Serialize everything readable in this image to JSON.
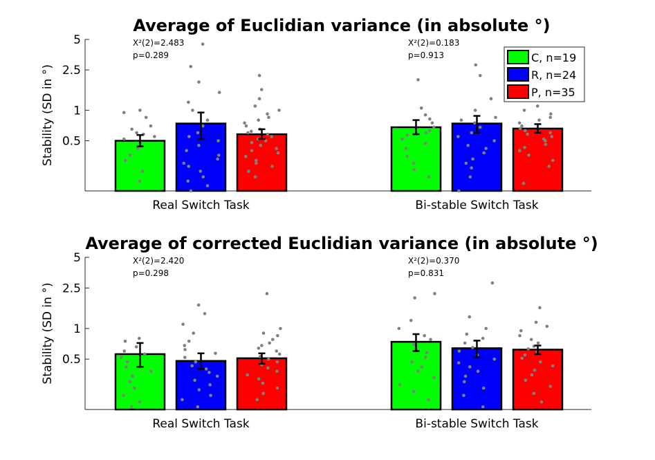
{
  "colors": {
    "C": "#00ff00",
    "R": "#0000ff",
    "P": "#ff0000",
    "dots": "#808080",
    "axis": "#262626"
  },
  "legend": {
    "location": "top-right",
    "entries": [
      "C, n=19",
      "R, n=24",
      "P, n=35"
    ]
  },
  "chart_data": [
    {
      "type": "bar",
      "title": "Average of Euclidian variance (in absolute °)",
      "ylabel": "Stability (SD in °)",
      "yscale": "log",
      "ylim": [
        0.16,
        5
      ],
      "yticks": [
        0.5,
        1,
        2.5,
        5
      ],
      "ytick_labels": [
        "0.5",
        "1",
        "2.5",
        "5"
      ],
      "categories": [
        "Real Switch Task",
        "Bi-stable Switch Task"
      ],
      "stats": [
        {
          "chi": "X²(2)=2.483",
          "p": "p=0.289"
        },
        {
          "chi": "X²(2)=0.183",
          "p": "p=0.913"
        }
      ],
      "series": [
        {
          "name": "C, n=19",
          "values": [
            0.5,
            0.68
          ],
          "err_low": [
            0.44,
            0.58
          ],
          "err_high": [
            0.57,
            0.8
          ],
          "points": [
            [
              0.2,
              0.25,
              0.32,
              0.36,
              0.42,
              0.48,
              0.52,
              0.55,
              0.58,
              0.6,
              0.65,
              0.7,
              0.85,
              0.95,
              1.0
            ],
            [
              0.22,
              0.26,
              0.3,
              0.35,
              0.42,
              0.47,
              0.52,
              0.57,
              0.6,
              0.63,
              0.68,
              0.75,
              0.82,
              0.9,
              1.05,
              2.0
            ]
          ]
        },
        {
          "name": "R, n=24",
          "values": [
            0.74,
            0.74
          ],
          "err_low": [
            0.52,
            0.6
          ],
          "err_high": [
            0.95,
            0.88
          ],
          "points": [
            [
              0.16,
              0.18,
              0.2,
              0.22,
              0.25,
              0.28,
              0.3,
              0.33,
              0.36,
              0.4,
              0.45,
              0.5,
              0.55,
              0.6,
              0.7,
              0.8,
              1.0,
              1.2,
              1.5,
              1.9,
              2.7,
              4.5
            ],
            [
              0.16,
              0.22,
              0.27,
              0.3,
              0.33,
              0.38,
              0.42,
              0.45,
              0.5,
              0.55,
              0.6,
              0.68,
              0.75,
              0.8,
              0.85,
              1.0,
              1.3,
              2.2,
              2.8
            ]
          ]
        },
        {
          "name": "P, n=35",
          "values": [
            0.58,
            0.66
          ],
          "err_low": [
            0.52,
            0.6
          ],
          "err_high": [
            0.65,
            0.73
          ],
          "points": [
            [
              0.22,
              0.25,
              0.28,
              0.3,
              0.32,
              0.35,
              0.38,
              0.4,
              0.42,
              0.45,
              0.48,
              0.5,
              0.52,
              0.55,
              0.58,
              0.6,
              0.62,
              0.65,
              0.7,
              0.75,
              0.8,
              0.85,
              0.92,
              1.0,
              1.1,
              1.3,
              1.6,
              2.2
            ],
            [
              0.19,
              0.28,
              0.32,
              0.36,
              0.4,
              0.43,
              0.46,
              0.5,
              0.52,
              0.55,
              0.58,
              0.6,
              0.63,
              0.66,
              0.7,
              0.75,
              0.8,
              0.85,
              0.92,
              1.0,
              1.1,
              1.4
            ]
          ]
        }
      ]
    },
    {
      "type": "bar",
      "title": "Average of corrected Euclidian variance (in absolute °)",
      "ylabel": "Stability (SD in °)",
      "yscale": "log",
      "ylim": [
        0.16,
        5
      ],
      "yticks": [
        0.5,
        1,
        2.5,
        5
      ],
      "ytick_labels": [
        "0.5",
        "1",
        "2.5",
        "5"
      ],
      "categories": [
        "Real Switch Task",
        "Bi-stable Switch Task"
      ],
      "stats": [
        {
          "chi": "X²(2)=2.420",
          "p": "p=0.298"
        },
        {
          "chi": "X²(2)=0.370",
          "p": "p=0.831"
        }
      ],
      "series": [
        {
          "name": "C, n=19",
          "values": [
            0.56,
            0.74
          ],
          "err_low": [
            0.42,
            0.6
          ],
          "err_high": [
            0.72,
            0.88
          ],
          "points": [
            [
              0.17,
              0.19,
              0.22,
              0.26,
              0.3,
              0.34,
              0.38,
              0.42,
              0.47,
              0.52,
              0.56,
              0.6,
              0.66,
              0.75,
              0.8
            ],
            [
              0.2,
              0.24,
              0.28,
              0.33,
              0.38,
              0.42,
              0.47,
              0.52,
              0.58,
              0.63,
              0.7,
              0.78,
              0.85,
              1.0,
              1.2,
              2.0,
              2.2
            ]
          ]
        },
        {
          "name": "R, n=24",
          "values": [
            0.48,
            0.64
          ],
          "err_low": [
            0.4,
            0.52
          ],
          "err_high": [
            0.57,
            0.76
          ],
          "points": [
            [
              0.17,
              0.2,
              0.22,
              0.25,
              0.28,
              0.31,
              0.34,
              0.37,
              0.4,
              0.43,
              0.47,
              0.52,
              0.57,
              0.62,
              0.68,
              0.75,
              0.9,
              1.1,
              1.4,
              1.7
            ],
            [
              0.17,
              0.22,
              0.26,
              0.3,
              0.34,
              0.38,
              0.42,
              0.46,
              0.5,
              0.55,
              0.6,
              0.65,
              0.72,
              0.8,
              0.88,
              1.0,
              1.3,
              2.8
            ]
          ]
        },
        {
          "name": "P, n=35",
          "values": [
            0.51,
            0.62
          ],
          "err_low": [
            0.45,
            0.56
          ],
          "err_high": [
            0.57,
            0.68
          ],
          "points": [
            [
              0.2,
              0.23,
              0.26,
              0.29,
              0.32,
              0.35,
              0.38,
              0.41,
              0.44,
              0.47,
              0.5,
              0.53,
              0.56,
              0.6,
              0.64,
              0.68,
              0.72,
              0.78,
              0.85,
              0.9,
              1.0,
              2.2
            ],
            [
              0.19,
              0.23,
              0.27,
              0.31,
              0.35,
              0.39,
              0.43,
              0.47,
              0.51,
              0.55,
              0.59,
              0.63,
              0.67,
              0.72,
              0.78,
              0.85,
              0.95,
              1.05,
              1.15,
              1.6
            ]
          ]
        }
      ]
    }
  ]
}
